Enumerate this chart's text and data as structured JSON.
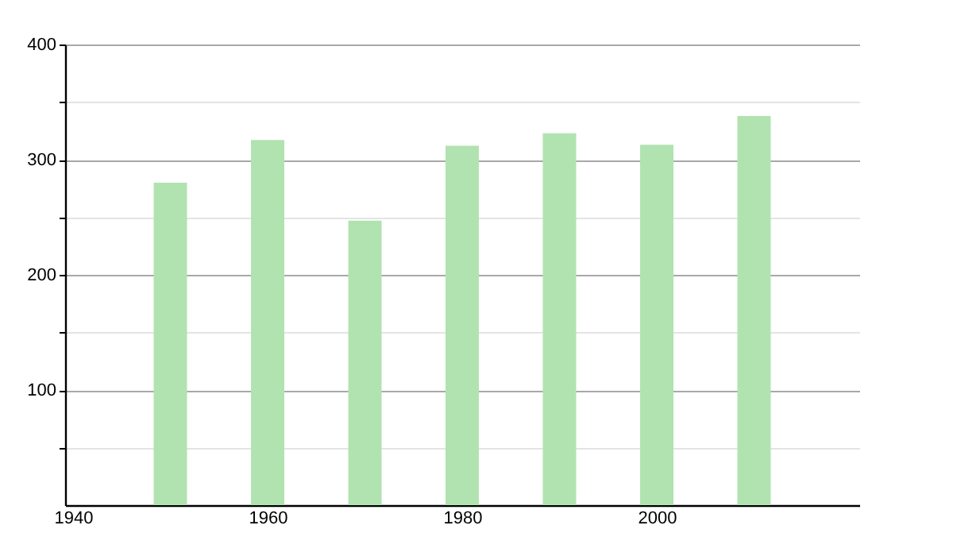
{
  "chart_data": {
    "type": "bar",
    "x": [
      1950,
      1960,
      1970,
      1980,
      1990,
      2000,
      2010
    ],
    "values": [
      280,
      317,
      247,
      312,
      323,
      313,
      338
    ],
    "color": "#b1e3b1",
    "xlim": [
      1940,
      2020
    ],
    "xticks": [
      1940,
      1960,
      1980,
      2000
    ],
    "ylim": [
      0,
      400
    ],
    "yticks": [
      {
        "value": 50,
        "label": null
      },
      100,
      {
        "value": 150,
        "label": null
      },
      200,
      {
        "value": 250,
        "label": null
      },
      300,
      {
        "value": 350,
        "label": null
      },
      400
    ],
    "grid": "y"
  }
}
